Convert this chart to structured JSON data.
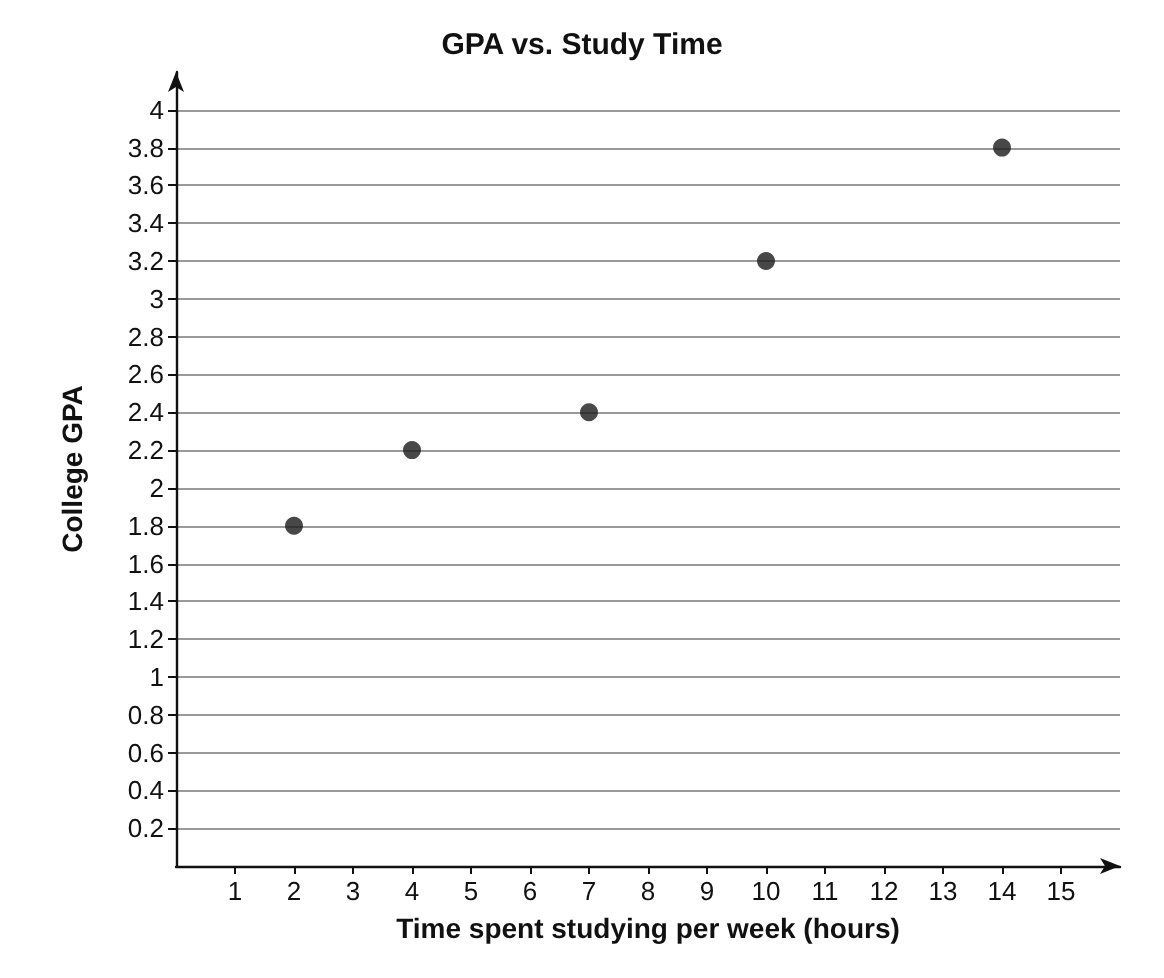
{
  "chart_data": {
    "type": "scatter",
    "title": "GPA vs. Study Time",
    "xlabel": "Time spent studying per week (hours)",
    "ylabel": "College GPA",
    "x": [
      2,
      4,
      7,
      10,
      14
    ],
    "values": [
      1.8,
      2.2,
      2.4,
      3.2,
      3.8
    ],
    "color": "#1a1a1a",
    "marker": "circle",
    "grid": "y",
    "xlim": [
      0,
      16
    ],
    "xticks": [
      1,
      2,
      3,
      4,
      5,
      6,
      7,
      8,
      9,
      10,
      11,
      12,
      13,
      14,
      15
    ],
    "ylim": [
      0,
      4.2
    ],
    "yticks": [
      0.2,
      0.4,
      0.6,
      0.8,
      1,
      1.2,
      1.4,
      1.6,
      1.8,
      2,
      2.2,
      2.4,
      2.6,
      2.8,
      3,
      3.2,
      3.4,
      3.6,
      3.8,
      4
    ]
  }
}
